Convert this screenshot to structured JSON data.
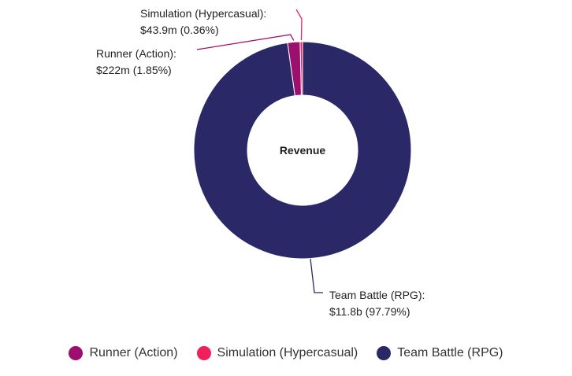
{
  "chart_data": {
    "type": "pie",
    "donut": true,
    "center_label": "Revenue",
    "categories": [
      "Runner (Action)",
      "Simulation (Hypercasual)",
      "Team Battle (RPG)"
    ],
    "values_usd": [
      222000000,
      43900000,
      11800000000
    ],
    "value_labels": [
      "$222m",
      "$43.9m",
      "$11.8b"
    ],
    "percentages": [
      1.85,
      0.36,
      97.79
    ],
    "percent_labels": [
      "1.85%",
      "0.36%",
      "97.79%"
    ],
    "colors": [
      "#9c0f6e",
      "#f0205c",
      "#2b2868"
    ],
    "legend_position": "bottom"
  },
  "callouts": [
    {
      "line1": "Runner (Action):",
      "line2": "$222m (1.85%)"
    },
    {
      "line1": "Simulation (Hypercasual):",
      "line2": "$43.9m (0.36%)"
    },
    {
      "line1": "Team Battle (RPG):",
      "line2": "$11.8b (97.79%)"
    }
  ],
  "legend": [
    {
      "label": "Runner (Action)",
      "color": "#9c0f6e"
    },
    {
      "label": "Simulation (Hypercasual)",
      "color": "#f0205c"
    },
    {
      "label": "Team Battle (RPG)",
      "color": "#2b2868"
    }
  ]
}
